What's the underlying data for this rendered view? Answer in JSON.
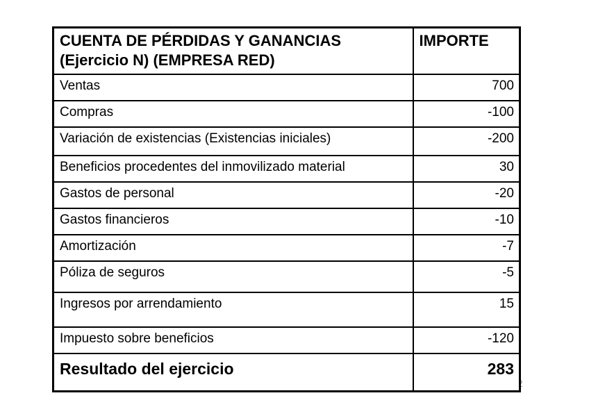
{
  "slide": {
    "page_number": "2"
  },
  "table": {
    "header": {
      "title_line1": "CUENTA DE PÉRDIDAS Y GANANCIAS",
      "title_line2": "(Ejercicio N) (EMPRESA RED)",
      "amount_label": "IMPORTE"
    },
    "rows": [
      {
        "concept": "Ventas",
        "amount": "700"
      },
      {
        "concept": "Compras",
        "amount": "-100"
      },
      {
        "concept": "Variación de existencias (Existencias iniciales)",
        "amount": "-200"
      },
      {
        "concept": "Beneficios procedentes del inmovilizado material",
        "amount": "30"
      },
      {
        "concept": "Gastos de personal",
        "amount": "-20"
      },
      {
        "concept": "Gastos financieros",
        "amount": "-10"
      },
      {
        "concept": "Amortización",
        "amount": "-7"
      },
      {
        "concept": "Póliza de seguros",
        "amount": "-5"
      },
      {
        "concept": "Ingresos por arrendamiento",
        "amount": "15"
      },
      {
        "concept": "Impuesto sobre beneficios",
        "amount": "-120"
      }
    ],
    "total_row": {
      "concept": "Resultado del ejercicio",
      "amount": "283"
    }
  },
  "colors": {
    "background": "#ffffff",
    "border": "#000000",
    "text": "#000000",
    "page_number": "#9a9a9a"
  }
}
